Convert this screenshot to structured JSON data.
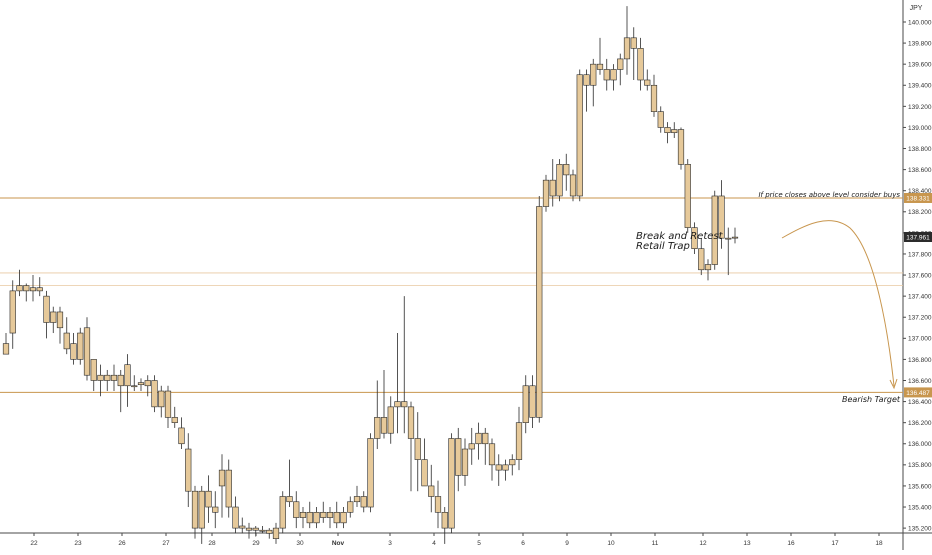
{
  "chart_data": {
    "type": "candlestick",
    "currency_label": "JPY",
    "x_ticks": [
      "22",
      "23",
      "26",
      "27",
      "28",
      "29",
      "30",
      "Nov",
      "3",
      "4",
      "5",
      "6",
      "9",
      "10",
      "11",
      "12",
      "13",
      "16",
      "17",
      "18"
    ],
    "y_ticks": [
      "140.000",
      "139.800",
      "139.600",
      "139.400",
      "139.200",
      "139.000",
      "138.800",
      "138.600",
      "138.400",
      "138.200",
      "138.000",
      "137.800",
      "137.600",
      "137.400",
      "137.200",
      "137.000",
      "136.800",
      "136.600",
      "136.400",
      "136.200",
      "136.000",
      "135.800",
      "135.600",
      "135.400",
      "135.200"
    ],
    "ylim": [
      135.12,
      140.2
    ],
    "price_tags": [
      {
        "label": "138.331",
        "value": 138.331,
        "color": "#c8964e"
      },
      {
        "label": "137.961",
        "value": 137.961,
        "color": "#2b2b2b"
      },
      {
        "label": "136.487",
        "value": 136.487,
        "color": "#c8964e"
      }
    ],
    "levels": [
      {
        "value": 138.331,
        "style": "solid"
      },
      {
        "value": 137.62,
        "style": "thin"
      },
      {
        "value": 137.5,
        "style": "thin"
      },
      {
        "value": 136.487,
        "style": "solid"
      }
    ],
    "annotations": {
      "break_line1": "Break and Retest",
      "break_line2": "Retail Trap",
      "closes_above": "If price closes above level consider buys",
      "bearish_target": "Bearish Target"
    },
    "candles": [
      [
        136.95,
        137.05,
        136.85,
        136.85
      ],
      [
        137.05,
        137.55,
        136.9,
        137.45
      ],
      [
        137.45,
        137.65,
        137.4,
        137.5
      ],
      [
        137.5,
        137.52,
        137.35,
        137.45
      ],
      [
        137.45,
        137.6,
        137.35,
        137.48
      ],
      [
        137.48,
        137.58,
        137.4,
        137.45
      ],
      [
        137.4,
        137.45,
        137.0,
        137.15
      ],
      [
        137.15,
        137.3,
        137.05,
        137.25
      ],
      [
        137.25,
        137.3,
        136.95,
        137.1
      ],
      [
        137.05,
        137.2,
        136.85,
        136.9
      ],
      [
        136.95,
        137.05,
        136.75,
        136.8
      ],
      [
        136.8,
        137.1,
        136.75,
        137.05
      ],
      [
        137.1,
        137.2,
        136.6,
        136.65
      ],
      [
        136.6,
        136.8,
        136.5,
        136.8
      ],
      [
        136.65,
        136.75,
        136.45,
        136.6
      ],
      [
        136.6,
        136.7,
        136.5,
        136.65
      ],
      [
        136.65,
        136.75,
        136.5,
        136.6
      ],
      [
        136.55,
        136.7,
        136.3,
        136.65
      ],
      [
        136.75,
        136.85,
        136.35,
        136.55
      ],
      [
        136.55,
        136.65,
        136.5,
        136.55
      ],
      [
        136.58,
        136.62,
        136.5,
        136.56
      ],
      [
        136.55,
        136.65,
        136.45,
        136.6
      ],
      [
        136.6,
        136.65,
        136.3,
        136.35
      ],
      [
        136.35,
        136.55,
        136.25,
        136.5
      ],
      [
        136.5,
        136.55,
        136.15,
        136.25
      ],
      [
        136.25,
        136.35,
        136.15,
        136.2
      ],
      [
        136.15,
        136.25,
        135.95,
        136.0
      ],
      [
        135.95,
        136.1,
        135.4,
        135.55
      ],
      [
        135.55,
        135.6,
        135.1,
        135.2
      ],
      [
        135.2,
        135.6,
        135.05,
        135.55
      ],
      [
        135.55,
        135.7,
        135.25,
        135.4
      ],
      [
        135.4,
        135.55,
        135.2,
        135.35
      ],
      [
        135.6,
        135.9,
        135.3,
        135.75
      ],
      [
        135.75,
        135.85,
        135.3,
        135.4
      ],
      [
        135.4,
        135.5,
        135.15,
        135.2
      ],
      [
        135.2,
        135.3,
        135.15,
        135.22
      ],
      [
        135.2,
        135.25,
        135.1,
        135.18
      ],
      [
        135.18,
        135.22,
        135.12,
        135.2
      ],
      [
        135.18,
        135.22,
        135.15,
        135.17
      ],
      [
        135.15,
        135.2,
        135.1,
        135.18
      ],
      [
        135.1,
        135.25,
        135.05,
        135.2
      ],
      [
        135.2,
        135.55,
        135.15,
        135.5
      ],
      [
        135.5,
        135.85,
        135.4,
        135.45
      ],
      [
        135.45,
        135.55,
        135.2,
        135.3
      ],
      [
        135.3,
        135.4,
        135.2,
        135.35
      ],
      [
        135.35,
        135.45,
        135.2,
        135.25
      ],
      [
        135.25,
        135.4,
        135.2,
        135.35
      ],
      [
        135.35,
        135.45,
        135.25,
        135.3
      ],
      [
        135.3,
        135.4,
        135.2,
        135.35
      ],
      [
        135.35,
        135.45,
        135.2,
        135.25
      ],
      [
        135.25,
        135.4,
        135.2,
        135.35
      ],
      [
        135.35,
        135.5,
        135.3,
        135.45
      ],
      [
        135.45,
        135.6,
        135.4,
        135.5
      ],
      [
        135.5,
        135.55,
        135.35,
        135.4
      ],
      [
        135.4,
        136.1,
        135.35,
        136.05
      ],
      [
        136.05,
        136.6,
        135.95,
        136.25
      ],
      [
        136.25,
        136.7,
        136.05,
        136.1
      ],
      [
        136.1,
        136.45,
        136.0,
        136.35
      ],
      [
        136.35,
        137.05,
        136.1,
        136.4
      ],
      [
        136.4,
        137.4,
        136.1,
        136.35
      ],
      [
        136.35,
        136.4,
        135.55,
        136.05
      ],
      [
        136.05,
        136.3,
        135.55,
        135.85
      ],
      [
        135.85,
        136.05,
        135.6,
        135.6
      ],
      [
        135.6,
        135.8,
        135.35,
        135.5
      ],
      [
        135.5,
        135.65,
        135.2,
        135.35
      ],
      [
        135.35,
        135.4,
        135.05,
        135.2
      ],
      [
        135.2,
        136.1,
        135.15,
        136.05
      ],
      [
        136.05,
        136.15,
        135.55,
        135.7
      ],
      [
        135.7,
        136.05,
        135.6,
        135.95
      ],
      [
        135.95,
        136.15,
        135.8,
        136.0
      ],
      [
        136.0,
        136.2,
        135.85,
        136.1
      ],
      [
        136.1,
        136.15,
        135.8,
        136.0
      ],
      [
        136.0,
        136.05,
        135.65,
        135.8
      ],
      [
        135.8,
        135.9,
        135.6,
        135.75
      ],
      [
        135.75,
        135.85,
        135.65,
        135.8
      ],
      [
        135.8,
        135.9,
        135.7,
        135.85
      ],
      [
        135.85,
        136.35,
        135.75,
        136.2
      ],
      [
        136.2,
        136.65,
        136.1,
        136.55
      ],
      [
        136.55,
        136.65,
        136.15,
        136.25
      ],
      [
        136.25,
        138.35,
        136.2,
        138.25
      ],
      [
        138.25,
        138.55,
        138.2,
        138.5
      ],
      [
        138.5,
        138.7,
        138.25,
        138.35
      ],
      [
        138.35,
        138.7,
        138.3,
        138.65
      ],
      [
        138.65,
        138.75,
        138.4,
        138.55
      ],
      [
        138.55,
        138.6,
        138.3,
        138.35
      ],
      [
        138.35,
        139.55,
        138.3,
        139.5
      ],
      [
        139.5,
        139.55,
        139.15,
        139.4
      ],
      [
        139.4,
        139.65,
        139.2,
        139.6
      ],
      [
        139.6,
        139.85,
        139.5,
        139.55
      ],
      [
        139.55,
        139.65,
        139.35,
        139.45
      ],
      [
        139.45,
        139.6,
        139.35,
        139.55
      ],
      [
        139.55,
        139.7,
        139.4,
        139.65
      ],
      [
        139.65,
        140.15,
        139.5,
        139.85
      ],
      [
        139.85,
        139.95,
        139.45,
        139.75
      ],
      [
        139.75,
        139.85,
        139.35,
        139.45
      ],
      [
        139.45,
        139.55,
        139.35,
        139.4
      ],
      [
        139.4,
        139.5,
        139.1,
        139.15
      ],
      [
        139.15,
        139.2,
        138.95,
        139.0
      ],
      [
        139.0,
        139.05,
        138.85,
        138.95
      ],
      [
        138.95,
        139.05,
        138.9,
        138.98
      ],
      [
        138.98,
        139.0,
        138.6,
        138.65
      ],
      [
        138.65,
        138.7,
        138.0,
        138.05
      ],
      [
        138.05,
        138.1,
        137.8,
        137.85
      ],
      [
        137.85,
        137.95,
        137.6,
        137.65
      ],
      [
        137.65,
        137.75,
        137.55,
        137.7
      ],
      [
        137.7,
        138.4,
        137.65,
        138.35
      ],
      [
        138.35,
        138.5,
        137.85,
        137.95
      ],
      [
        137.95,
        138.05,
        137.6,
        137.95
      ],
      [
        137.95,
        138.05,
        137.9,
        137.96
      ]
    ]
  }
}
